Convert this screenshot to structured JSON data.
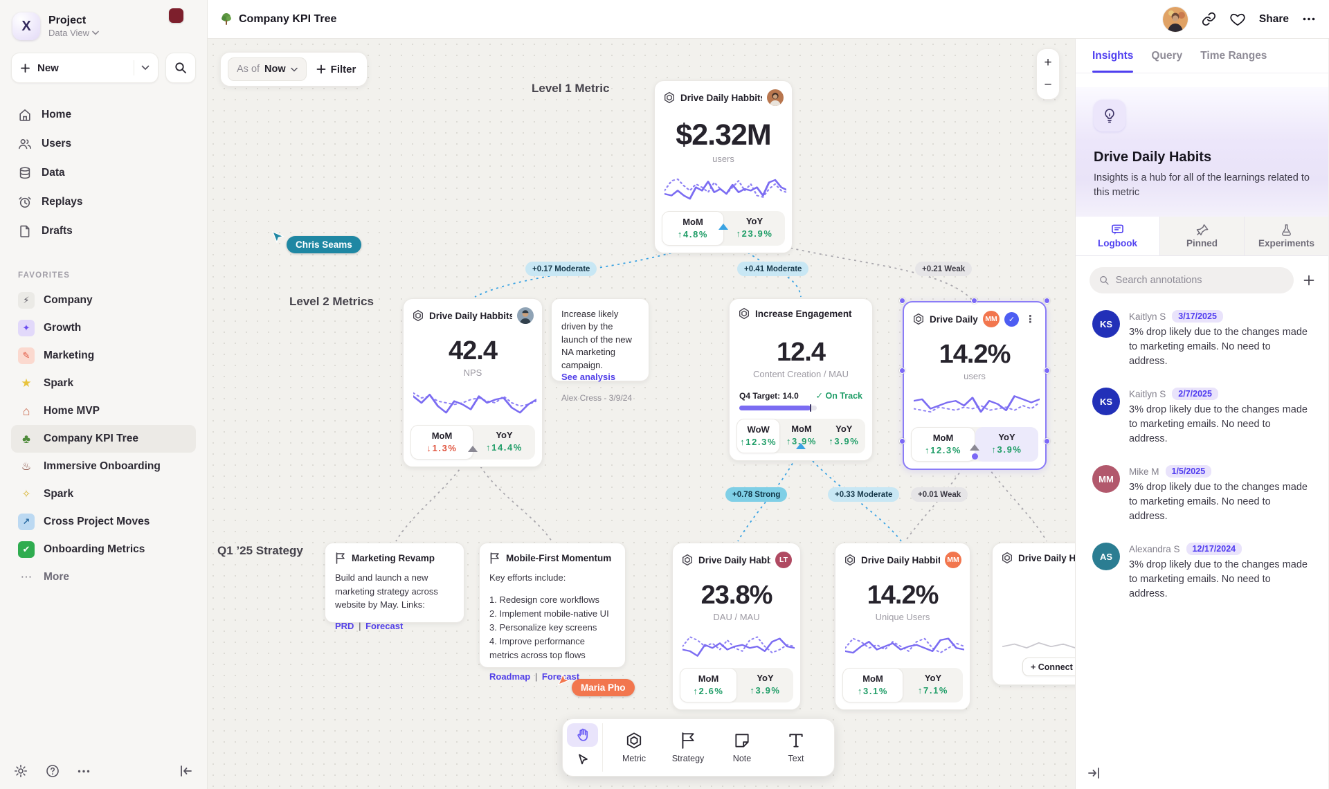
{
  "colors": {
    "accent": "#4f3ff0",
    "spark": "#7b6cf2",
    "green": "#1f9d67",
    "red": "#e0543e",
    "edge_blue": "#3aa3e3",
    "cursor_teal": "#1f87a3",
    "cursor_coral": "#f2764e"
  },
  "sidebar": {
    "project": {
      "name": "Project",
      "view": "Data View"
    },
    "new_label": "New",
    "nav": [
      {
        "label": "Home"
      },
      {
        "label": "Users"
      },
      {
        "label": "Data"
      },
      {
        "label": "Replays"
      },
      {
        "label": "Drafts"
      }
    ],
    "favorites_label": "FAVORITES",
    "favorites": [
      {
        "label": "Company",
        "glyph": "⚡",
        "icon_style": "background:#ebeae6;color:#55525c"
      },
      {
        "label": "Growth",
        "glyph": "✦",
        "icon_style": "background:#e2d9fa;color:#6a4df0"
      },
      {
        "label": "Marketing",
        "glyph": "✎",
        "icon_style": "background:#fbd9cf;color:#e0543e"
      },
      {
        "label": "Spark",
        "glyph": "★",
        "icon_style": "color:#e8c33c;font-size:17px"
      },
      {
        "label": "Home MVP",
        "glyph": "⌂",
        "icon_style": "color:#c9664a;font-size:18px;font-weight:700"
      },
      {
        "label": "Company KPI Tree",
        "glyph": "♣",
        "icon_style": "color:#4e8a3a;font-size:18px"
      },
      {
        "label": "Immersive Onboarding",
        "glyph": "♨",
        "icon_style": "color:#7a3b2e;font-size:16px"
      },
      {
        "label": "Spark",
        "glyph": "✧",
        "icon_style": "color:#d9b83c;font-size:16px"
      },
      {
        "label": "Cross Project Moves",
        "glyph": "↗",
        "icon_style": "background:#bcd9f2;color:#2b6ca3;font-weight:700"
      },
      {
        "label": "Onboarding Metrics",
        "glyph": "✔",
        "icon_style": "background:#2fac4f;color:#fff"
      },
      {
        "label": "More",
        "glyph": "⋯",
        "icon_style": "color:#8e8b94;font-size:17px"
      }
    ]
  },
  "header": {
    "title": "Company KPI Tree",
    "share_label": "Share"
  },
  "canvas": {
    "as_of_label": "As of",
    "as_of_value": "Now",
    "filter_label": "Filter",
    "level1_label": "Level 1 Metric",
    "level2_label": "Level 2 Metrics",
    "q1_label": "Q1 ’25 Strategy",
    "edges": [
      {
        "label": "+0.17 Moderate"
      },
      {
        "label": "+0.41 Moderate"
      },
      {
        "label": "+0.21 Weak"
      },
      {
        "label": "+0.78 Strong"
      },
      {
        "label": "+0.33 Moderate"
      },
      {
        "label": "+0.01 Weak"
      }
    ],
    "cursors": [
      {
        "name": "Chris Seams"
      },
      {
        "name": "Maria Pho"
      }
    ],
    "cards": {
      "level1": {
        "title": "Drive Daily Habbits",
        "value": "$2.32M",
        "unit": "users",
        "mom_label": "MoM",
        "mom_value": "↑4.8%",
        "yoy_label": "YoY",
        "yoy_value": "↑23.9%"
      },
      "nps": {
        "title": "Drive Daily Habbits",
        "value": "42.4",
        "unit": "NPS",
        "mom_label": "MoM",
        "mom_value": "↓1.3%",
        "yoy_label": "YoY",
        "yoy_value": "↑14.4%"
      },
      "note1": {
        "text": "Increase likely driven by the launch of the new NA marketing campaign.",
        "link": "See analysis",
        "author": "Alex Cress - 3/9/24"
      },
      "engagement": {
        "title": "Increase Engagement",
        "value": "12.4",
        "unit": "Content Creation / MAU",
        "target": "Q4 Target: 14.0",
        "status": "✓ On Track",
        "wow_label": "WoW",
        "wow_value": "↑12.3%",
        "mom_label": "MoM",
        "mom_value": "↑3.9%",
        "yoy_label": "YoY",
        "yoy_value": "↑3.9%"
      },
      "selected": {
        "title": "Drive Daily Habb..",
        "badge": "MM",
        "value": "14.2%",
        "unit": "users",
        "mom_label": "MoM",
        "mom_value": "↑12.3%",
        "yoy_label": "YoY",
        "yoy_value": "↑3.9%"
      },
      "strategy1": {
        "title": "Marketing Revamp",
        "body": "Build and launch a new marketing strategy across website by May. Links:",
        "link1": "PRD",
        "sep": "|",
        "link2": "Forecast"
      },
      "strategy2": {
        "title": "Mobile-First Momentum",
        "intro": "Key efforts include:",
        "item1": "1. Redesign core workflows",
        "item2": "2. Implement mobile-native UI",
        "item3": "3. Personalize key screens",
        "item4": "4. Improve performance metrics across top flows",
        "link1": "Roadmap",
        "sep": "|",
        "link2": "Forecast"
      },
      "dau": {
        "title": "Drive Daily Habbits",
        "badge": "LT",
        "value": "23.8%",
        "unit": "DAU / MAU",
        "mom_label": "MoM",
        "mom_value": "↑2.6%",
        "yoy_label": "YoY",
        "yoy_value": "↑3.9%"
      },
      "unique": {
        "title": "Drive Daily Habbits",
        "badge": "MM",
        "value": "14.2%",
        "unit": "Unique Users",
        "mom_label": "MoM",
        "mom_value": "↑3.1%",
        "yoy_label": "YoY",
        "yoy_value": "↑7.1%"
      },
      "partial": {
        "title": "Drive Daily Hab",
        "connect_label": "+ Connect"
      }
    },
    "toolbar": {
      "tools": [
        {
          "label": "Metric"
        },
        {
          "label": "Strategy"
        },
        {
          "label": "Note"
        },
        {
          "label": "Text"
        }
      ]
    }
  },
  "panel": {
    "tabs": [
      {
        "label": "Insights"
      },
      {
        "label": "Query"
      },
      {
        "label": "Time Ranges"
      }
    ],
    "title": "Drive Daily Habits",
    "description": "Insights is a hub for all of the learnings related to this metric",
    "subtabs": [
      {
        "label": "Logbook"
      },
      {
        "label": "Pinned"
      },
      {
        "label": "Experiments"
      }
    ],
    "search_placeholder": "Search annotations",
    "annotations": [
      {
        "initials": "KS",
        "name": "Kaitlyn S",
        "date": "3/17/2025",
        "text": "3% drop likely due to the changes made to marketing emails. No need to address.",
        "color": "#2230b8"
      },
      {
        "initials": "KS",
        "name": "Kaitlyn S",
        "date": "2/7/2025",
        "text": "3% drop likely due to the changes made to marketing emails. No need to address.",
        "color": "#2230b8"
      },
      {
        "initials": "MM",
        "name": "Mike M",
        "date": "1/5/2025",
        "text": "3% drop likely due to the changes made to marketing emails. No need to address.",
        "color": "#b2586c"
      },
      {
        "initials": "AS",
        "name": "Alexandra S",
        "date": "12/17/2024",
        "text": "3% drop likely due to the changes made to marketing emails. No need to address.",
        "color": "#2b7d92"
      }
    ]
  },
  "sparklines": {
    "l1s": "0,28 7,30 13,24 19,30 25,34 31,20 37,24 43,13 49,26 55,22 61,28 67,17 73,26 79,22 85,24 91,20 97,30 103,14 109,11 115,20 120,23",
    "l1d": "0,24 7,12 13,10 19,18 25,24 31,16 37,20 43,26 49,14 55,22 61,28 67,20 73,12 79,24 85,16 91,30 97,32 103,22 109,16 115,24 120,26",
    "npss": "0,14 8,22 16,12 24,26 32,34 40,20 48,24 56,30 64,14 72,22 80,18 88,16 96,28 104,34 112,24 120,18",
    "npsd": "0,10 8,16 16,14 24,20 32,22 40,24 48,22 56,18 64,16 72,20 80,22 88,14 96,22 104,26 112,24 120,20",
    "sels": "0,16 8,14 16,26 24,22 32,18 40,16 48,22 56,12 64,30 72,16 80,20 88,28 96,10 104,14 112,18 120,14",
    "seld": "0,26 8,28 16,30 24,24 32,26 40,28 48,24 56,26 64,22 72,28 80,26 88,24 96,28 104,22 112,26 120,18",
    "daus": "0,26 8,28 16,34 24,20 32,24 40,18 48,26 56,22 64,20 72,24 80,22 88,28 96,16 104,12 112,22 120,24",
    "daud": "0,22 8,10 16,14 24,22 32,18 40,26 48,14 56,24 64,28 72,14 80,10 88,22 96,30 104,26 112,20 120,22",
    "uniqs": "0,28 8,30 16,22 24,16 32,26 40,22 48,18 56,26 64,22 72,20 80,24 88,28 96,14 104,12 112,24 120,26",
    "uniqd": "0,24 8,12 16,16 24,24 32,20 40,26 48,16 56,22 64,28 72,16 80,12 88,24 96,30 104,24 112,18 120,22",
    "parts": "0,30 12,26 24,32 36,24 48,30 60,26 72,32 84,26 96,30 108,26 120,30"
  }
}
